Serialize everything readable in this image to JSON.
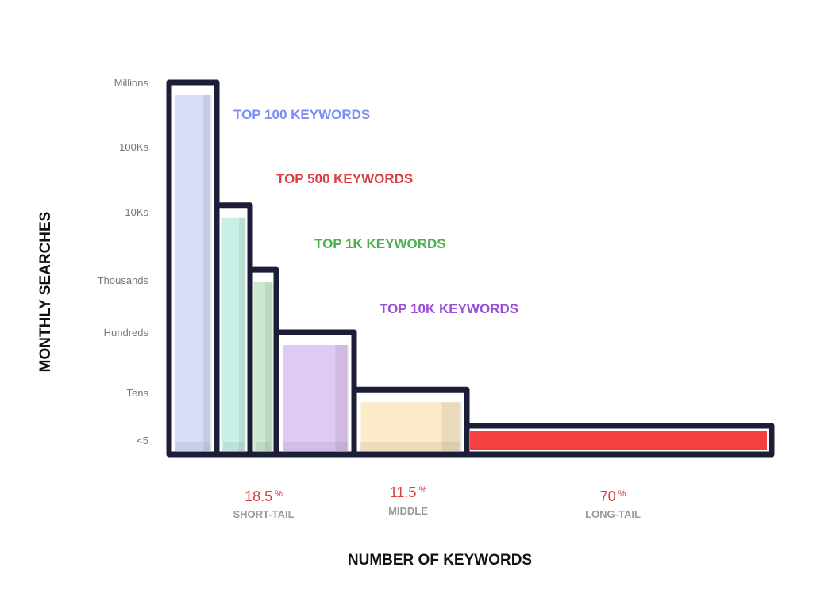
{
  "chart_data": {
    "type": "bar",
    "xlabel": "NUMBER OF KEYWORDS",
    "ylabel": "MONTHLY SEARCHES",
    "y_scale": "ordinal",
    "y_ticks": [
      "<5",
      "Tens",
      "Hundreds",
      "Thousands",
      "10Ks",
      "100Ks",
      "Millions"
    ],
    "grid": false,
    "colors": {
      "outline": "#1c1d36",
      "percent": "#d94044",
      "segment_label": "#9a9a9a"
    },
    "series": [
      {
        "name": "TOP 100 KEYWORDS",
        "color": "#7b8df2",
        "fill": "#d7dcf8",
        "value_level": 6.0
      },
      {
        "name": "TOP 500 KEYWORDS",
        "color": "#d94044",
        "fill": "#c9f0e6",
        "value_level": 4.1
      },
      {
        "name": "TOP 1K KEYWORDS",
        "color": "#4caf50",
        "fill": "#cde8cf",
        "value_level": 3.15
      },
      {
        "name": "TOP 10K KEYWORDS",
        "color": "#9a4fd6",
        "fill": "#e0c9f3",
        "value_level": 2.0
      },
      {
        "name": "",
        "color": "#f5d28e",
        "fill": "#fcebc9",
        "value_level": 1.05
      },
      {
        "name": "",
        "color": "#f44040",
        "fill": "#f44040",
        "value_level": 0.3
      }
    ],
    "segments": [
      {
        "percent": "18.5",
        "symbol": "%",
        "label": "SHORT-TAIL"
      },
      {
        "percent": "11.5",
        "symbol": "%",
        "label": "MIDDLE"
      },
      {
        "percent": "70",
        "symbol": "%",
        "label": "LONG-TAIL"
      }
    ]
  }
}
